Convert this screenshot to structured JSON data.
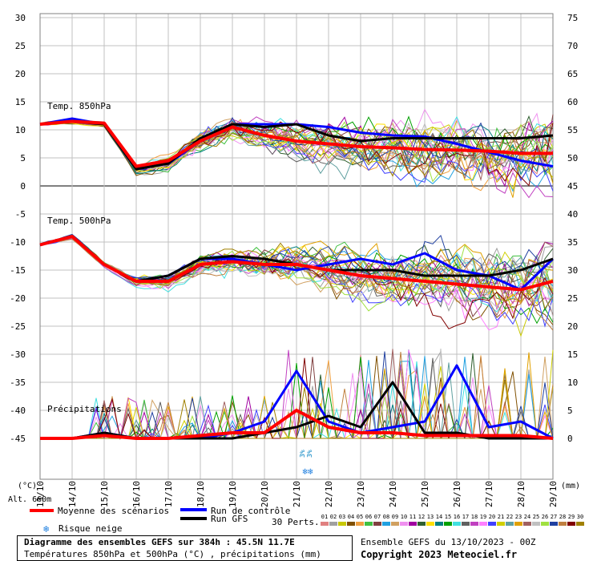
{
  "chart_data": {
    "type": "line",
    "left_axis": {
      "unit": "(°C)",
      "ticks": [
        30,
        25,
        20,
        15,
        10,
        5,
        0,
        -5,
        -10,
        -15,
        -20,
        -25,
        -30,
        -35,
        -40,
        -45
      ]
    },
    "right_axis": {
      "unit": "(mm)",
      "ticks": [
        75,
        70,
        65,
        60,
        55,
        50,
        45,
        40,
        35,
        30,
        25,
        20,
        15,
        10,
        5,
        0
      ]
    },
    "x_dates": [
      "13/10",
      "14/10",
      "15/10",
      "16/10",
      "17/10",
      "18/10",
      "19/10",
      "20/10",
      "21/10",
      "22/10",
      "23/10",
      "24/10",
      "25/10",
      "26/10",
      "27/10",
      "28/10",
      "29/10"
    ],
    "panels": [
      {
        "label": "Temp. 850hPa",
        "mean": [
          11,
          11.5,
          11.2,
          3.5,
          4.5,
          8,
          10.5,
          9,
          8,
          7.5,
          7,
          6.8,
          6.5,
          6.4,
          6.2,
          5.8,
          5.8
        ],
        "control": [
          11,
          12,
          11,
          3,
          4,
          8,
          11,
          11,
          11,
          10.5,
          9.5,
          9,
          8.8,
          7.5,
          6,
          4.5,
          3.5
        ],
        "gfs": [
          11,
          11.5,
          11,
          3,
          4,
          8.5,
          11,
          10.5,
          11,
          9,
          8,
          8.5,
          8.5,
          8.5,
          8.5,
          8.5,
          9
        ]
      },
      {
        "label": "Temp. 500hPa",
        "mean": [
          -10.5,
          -9,
          -14,
          -17,
          -17,
          -14,
          -13.5,
          -14,
          -14,
          -15,
          -16,
          -16.5,
          -17,
          -17.5,
          -18,
          -18.5,
          -17
        ],
        "control": [
          -10.5,
          -9,
          -14,
          -17,
          -16,
          -13,
          -13,
          -14,
          -15,
          -14,
          -13,
          -14,
          -12,
          -15,
          -16,
          -18.5,
          -13
        ],
        "gfs": [
          -10.5,
          -9,
          -14,
          -17,
          -16,
          -13,
          -12.5,
          -13,
          -14,
          -15,
          -15,
          -15,
          -16,
          -16,
          -16,
          -15,
          -13
        ]
      },
      {
        "label": "Précipitations",
        "unit": "mm",
        "mean": [
          0,
          0,
          0.5,
          0,
          0,
          0.5,
          1,
          1,
          5,
          2,
          1,
          1,
          0.5,
          0.5,
          0.5,
          0.5,
          0
        ],
        "control": [
          0,
          0,
          1,
          0,
          0,
          0,
          1,
          3,
          12,
          3,
          1,
          2,
          3,
          13,
          2,
          3,
          0
        ],
        "gfs": [
          0,
          0,
          1,
          0,
          0,
          0,
          0,
          1,
          2,
          4,
          2,
          10,
          1,
          1,
          0,
          0,
          0
        ]
      }
    ],
    "snow_risk_labels": [
      "3%",
      "3%"
    ],
    "grid": true
  },
  "legend": {
    "mean_label": "Moyenne des scénarios",
    "control_label": "Run de contrôle",
    "gfs_label": "Run GFS",
    "snow_label": "Risque neige",
    "perts_label": "30 Perts.",
    "altitude": "Alt. 660m",
    "members": [
      "01",
      "02",
      "03",
      "04",
      "05",
      "06",
      "07",
      "08",
      "09",
      "10",
      "11",
      "12",
      "13",
      "14",
      "15",
      "16",
      "17",
      "18",
      "19",
      "20",
      "21",
      "22",
      "23",
      "24",
      "25",
      "26",
      "27",
      "28",
      "29",
      "30"
    ],
    "member_colors": [
      "#e08080",
      "#a0a0a0",
      "#c8c800",
      "#805000",
      "#f0a040",
      "#40c040",
      "#804040",
      "#20a0e0",
      "#d0a060",
      "#f090f0",
      "#a000a0",
      "#306030",
      "#ffe000",
      "#008080",
      "#00a000",
      "#40e0e0",
      "#606060",
      "#c040c0",
      "#ff80ff",
      "#4040ff",
      "#d0d000",
      "#60a0a0",
      "#e0a000",
      "#a06060",
      "#c0c0c0",
      "#a0e040",
      "#2040a0",
      "#c08040",
      "#800000",
      "#a08000"
    ]
  },
  "colors": {
    "mean": "#ff0000",
    "control": "#0000ff",
    "gfs": "#000000",
    "zero_line": "#808080",
    "grid": "#c0c0c0"
  },
  "footer": {
    "title": "Diagramme des ensembles GEFS sur 384h : 45.5N 11.7E",
    "subtitle": "Températures 850hPa et 500hPa (°C) , précipitations (mm)",
    "run": "Ensemble GEFS du 13/10/2023 - 00Z",
    "copyright": "Copyright 2023 Meteociel.fr"
  }
}
